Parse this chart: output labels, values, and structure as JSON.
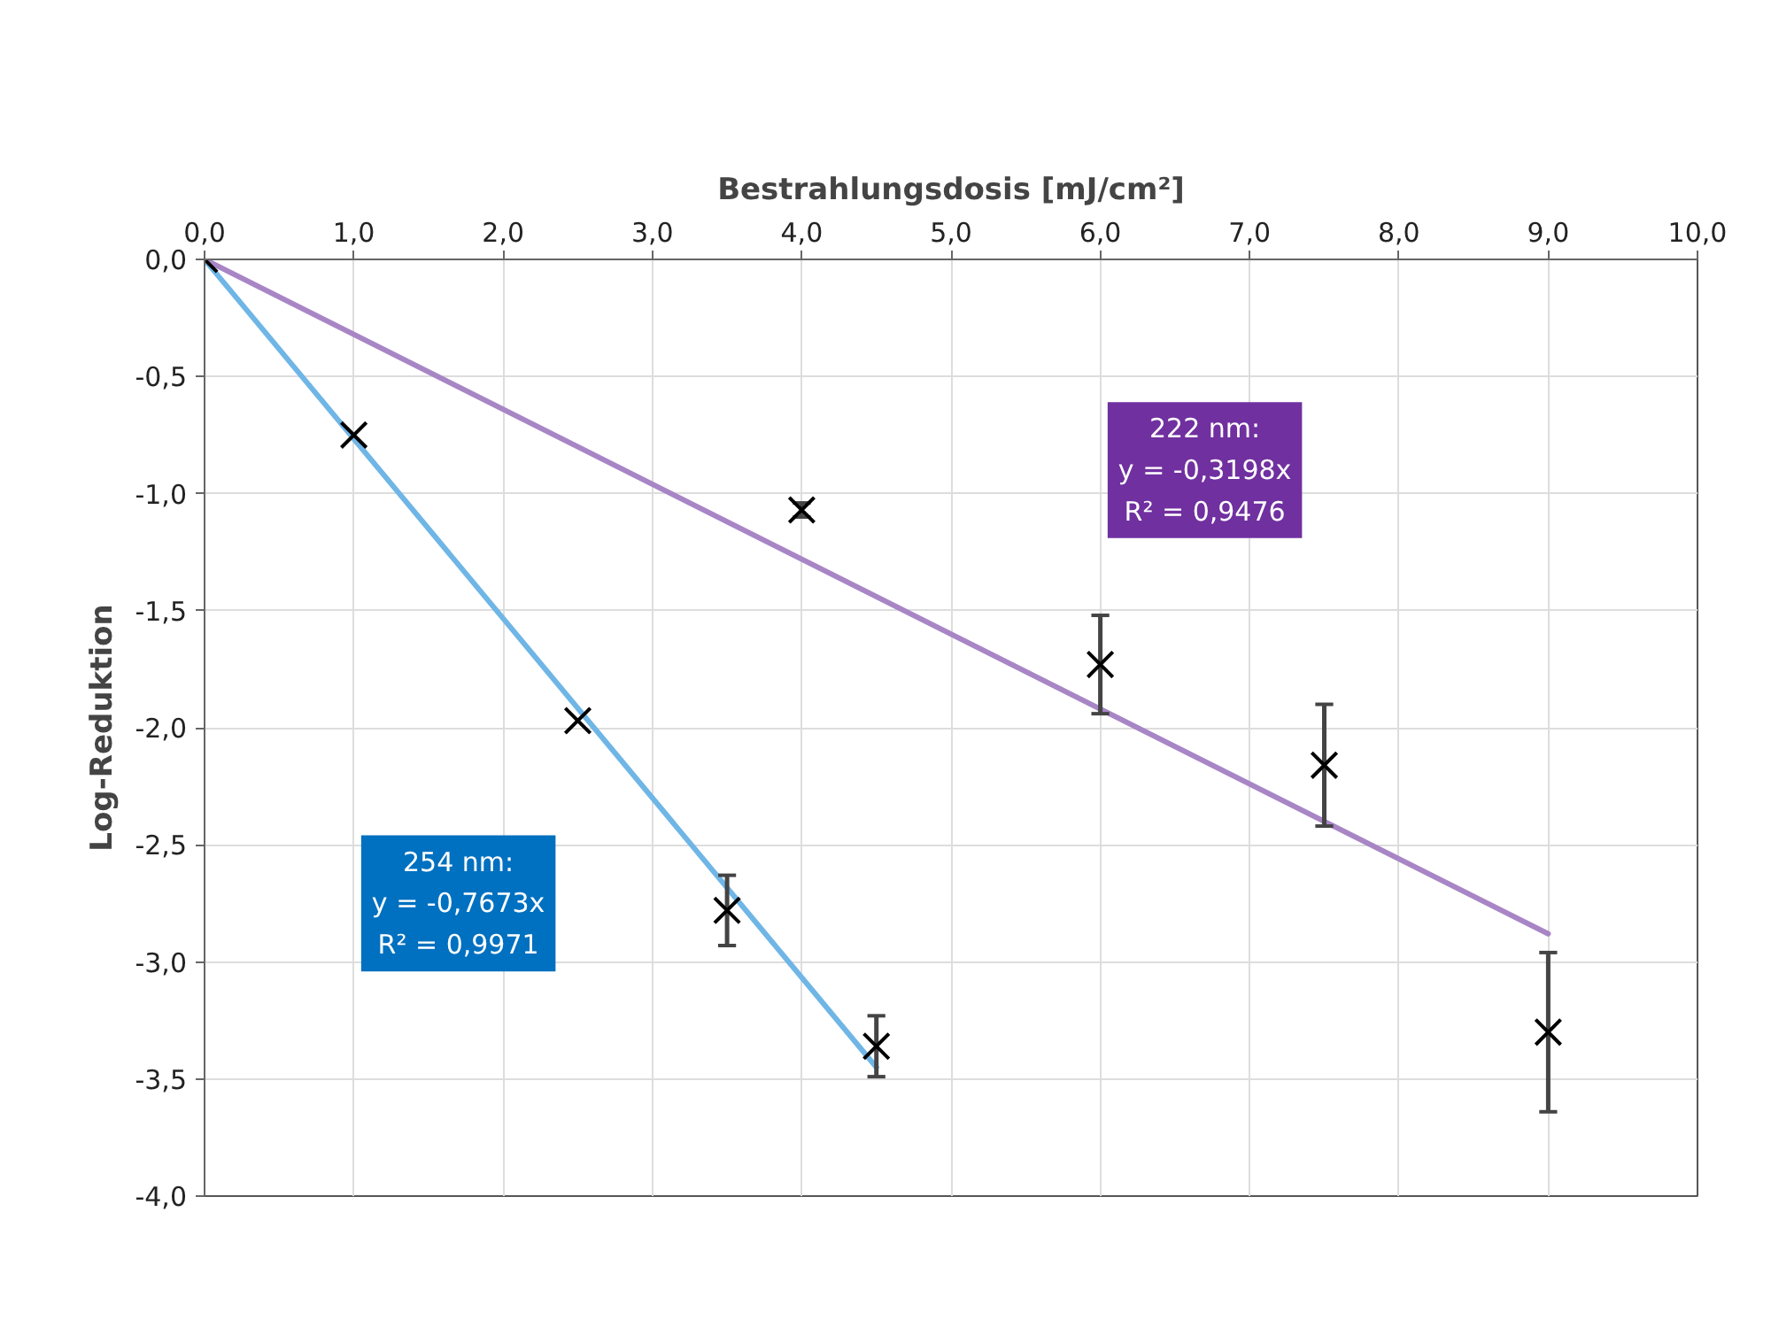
{
  "chart_data": {
    "type": "scatter",
    "xlabel": "Bestrahlungsdosis [mJ/cm²]",
    "ylabel": "Log-Reduktion",
    "xlim": [
      0,
      10
    ],
    "ylim": [
      -4,
      0
    ],
    "xticks": [
      {
        "value": 0,
        "label": "0,0"
      },
      {
        "value": 1,
        "label": "1,0"
      },
      {
        "value": 2,
        "label": "2,0"
      },
      {
        "value": 3,
        "label": "3,0"
      },
      {
        "value": 4,
        "label": "4,0"
      },
      {
        "value": 5,
        "label": "5,0"
      },
      {
        "value": 6,
        "label": "6,0"
      },
      {
        "value": 7,
        "label": "7,0"
      },
      {
        "value": 8,
        "label": "8,0"
      },
      {
        "value": 9,
        "label": "9,0"
      },
      {
        "value": 10,
        "label": "10,0"
      }
    ],
    "yticks": [
      {
        "value": 0,
        "label": "0,0"
      },
      {
        "value": -0.5,
        "label": "-0,5"
      },
      {
        "value": -1,
        "label": "-1,0"
      },
      {
        "value": -1.5,
        "label": "-1,5"
      },
      {
        "value": -2,
        "label": "-2,0"
      },
      {
        "value": -2.5,
        "label": "-2,5"
      },
      {
        "value": -3,
        "label": "-3,0"
      },
      {
        "value": -3.5,
        "label": "-3,5"
      },
      {
        "value": -4,
        "label": "-4,0"
      }
    ],
    "grid": true,
    "series": [
      {
        "type": "line",
        "x": [
          0,
          4.5
        ],
        "values": [
          0,
          -3.45
        ],
        "color": "#6fb6e6"
      },
      {
        "type": "line",
        "x": [
          0,
          9
        ],
        "values": [
          0,
          -2.88
        ],
        "color": "#a886c6"
      },
      {
        "marker": "cross",
        "x": [
          0,
          1,
          2.5,
          3.5,
          4.5
        ],
        "values": [
          0,
          -0.75,
          -1.97,
          -2.78,
          -3.36
        ],
        "errors": [
          null,
          null,
          null,
          0.15,
          0.13
        ],
        "color": "#000000"
      },
      {
        "marker": "cross",
        "x": [
          4,
          6,
          7.5,
          9
        ],
        "values": [
          -1.07,
          -1.73,
          -2.16,
          -3.3
        ],
        "errors": [
          0.03,
          0.21,
          0.26,
          0.34
        ],
        "color": "#000000"
      }
    ],
    "annotations": [
      "222 nm:\ny = -0,3198x\nR² = 0,9476",
      "254 nm:\ny = -0,7673x\nR² = 0,9971"
    ]
  }
}
